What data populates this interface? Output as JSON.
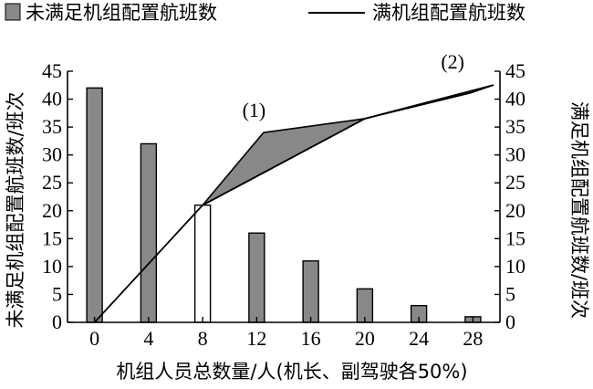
{
  "chart_data": {
    "type": "bar",
    "legend": {
      "position": "top",
      "bar_label": "未满足机组配置航班数",
      "line_label": "满机组配置航班数"
    },
    "xlabel": "机组人员总数量/人(机长、副驾驶各50%)",
    "ylabel_left": "未满足机组配置航班数/班次",
    "ylabel_right": "满足机组配置航班数/班次",
    "x": [
      0,
      4,
      8,
      12,
      16,
      20,
      24,
      28
    ],
    "xlim": [
      -2,
      30
    ],
    "ylim": [
      0,
      45
    ],
    "yticks": [
      0,
      5,
      10,
      15,
      20,
      25,
      30,
      35,
      40,
      45
    ],
    "bars": {
      "values": [
        42,
        32,
        21,
        16,
        11,
        6,
        3,
        1
      ],
      "highlight_index": 2,
      "color": "#888888",
      "highlight_color": "#ffffff"
    },
    "line": {
      "points": [
        [
          0,
          0
        ],
        [
          8,
          21
        ],
        [
          20,
          36.5
        ],
        [
          29.5,
          42.5
        ]
      ],
      "color": "#000000"
    },
    "shaded_regions": [
      {
        "label": "(1)",
        "label_at": [
          11.8,
          36.8
        ],
        "points": [
          [
            8,
            21
          ],
          [
            12.5,
            34
          ],
          [
            20,
            36.5
          ]
        ],
        "color": "#888888"
      },
      {
        "label": "(2)",
        "label_at": [
          26.5,
          45.5
        ],
        "points": [
          [
            20,
            36.5
          ],
          [
            29.5,
            42.5
          ],
          [
            27.8,
            41.1
          ]
        ],
        "color": "#888888"
      }
    ]
  }
}
